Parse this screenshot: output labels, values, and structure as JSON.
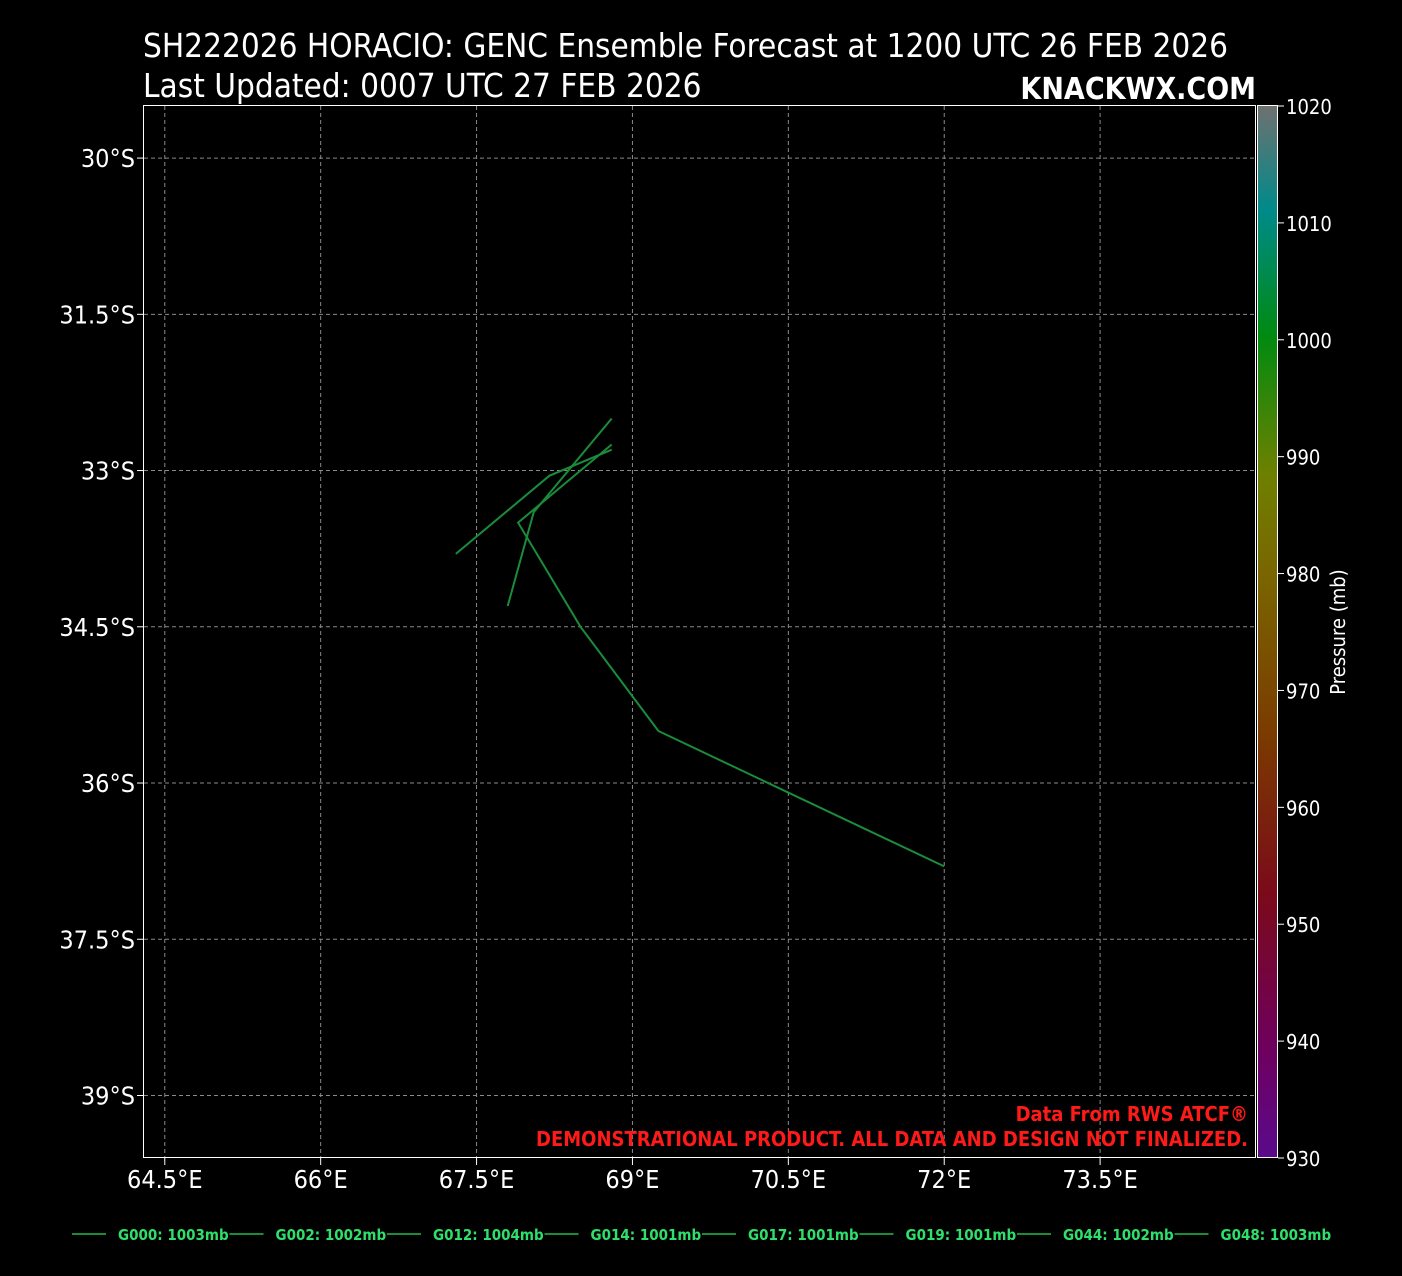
{
  "header": {
    "title_line1": "SH222026 HORACIO: GENC Ensemble Forecast at 1200 UTC 26 FEB 2026",
    "title_line2": "Last Updated: 0007 UTC 27 FEB 2026",
    "brand": "KNACKWX.COM"
  },
  "footer": {
    "data_source": "Data From RWS ATCF®",
    "disclaimer": "DEMONSTRATIONAL PRODUCT. ALL DATA AND DESIGN NOT FINALIZED."
  },
  "colors": {
    "background": "#000000",
    "track": "#1a8c3a",
    "legend_text": "#2ee06b",
    "notice": "#ff1a1a",
    "grid": "#8a8a8a"
  },
  "chart_data": {
    "type": "line",
    "xlim": [
      64.3,
      75.0
    ],
    "ylim": [
      -39.6,
      -29.5
    ],
    "x_ticks": [
      {
        "value": 64.5,
        "label": "64.5°E"
      },
      {
        "value": 66.0,
        "label": "66°E"
      },
      {
        "value": 67.5,
        "label": "67.5°E"
      },
      {
        "value": 69.0,
        "label": "69°E"
      },
      {
        "value": 70.5,
        "label": "70.5°E"
      },
      {
        "value": 72.0,
        "label": "72°E"
      },
      {
        "value": 73.5,
        "label": "73.5°E"
      }
    ],
    "y_ticks": [
      {
        "value": -30.0,
        "label": "30°S"
      },
      {
        "value": -31.5,
        "label": "31.5°S"
      },
      {
        "value": -33.0,
        "label": "33°S"
      },
      {
        "value": -34.5,
        "label": "34.5°S"
      },
      {
        "value": -36.0,
        "label": "36°S"
      },
      {
        "value": -37.5,
        "label": "37.5°S"
      },
      {
        "value": -39.0,
        "label": "39°S"
      }
    ],
    "grid": true,
    "tracks": [
      {
        "points": [
          [
            72.0,
            -36.8
          ],
          [
            69.25,
            -35.5
          ],
          [
            68.5,
            -34.5
          ],
          [
            67.9,
            -33.5
          ],
          [
            68.8,
            -32.75
          ]
        ]
      },
      {
        "points": [
          [
            67.3,
            -33.8
          ],
          [
            68.2,
            -33.05
          ],
          [
            68.8,
            -32.8
          ]
        ]
      },
      {
        "points": [
          [
            67.8,
            -34.3
          ],
          [
            68.05,
            -33.4
          ],
          [
            68.8,
            -32.5
          ]
        ]
      }
    ],
    "colorbar": {
      "label": "Pressure (mb)",
      "min": 930,
      "max": 1020,
      "ticks": [
        1020,
        1010,
        1000,
        990,
        980,
        970,
        960,
        950,
        940,
        930
      ]
    },
    "legend": {
      "placement": "bottom",
      "entries": [
        {
          "label": "G000: 1003mb",
          "color": "#1a8c3a"
        },
        {
          "label": "G002: 1002mb",
          "color": "#1a8c3a"
        },
        {
          "label": "G012: 1004mb",
          "color": "#1a8c3a"
        },
        {
          "label": "G014: 1001mb",
          "color": "#1a8c3a"
        },
        {
          "label": "G017: 1001mb",
          "color": "#1a8c3a"
        },
        {
          "label": "G019: 1001mb",
          "color": "#1a8c3a"
        },
        {
          "label": "G044: 1002mb",
          "color": "#1a8c3a"
        },
        {
          "label": "G048: 1003mb",
          "color": "#1a8c3a"
        }
      ]
    }
  }
}
